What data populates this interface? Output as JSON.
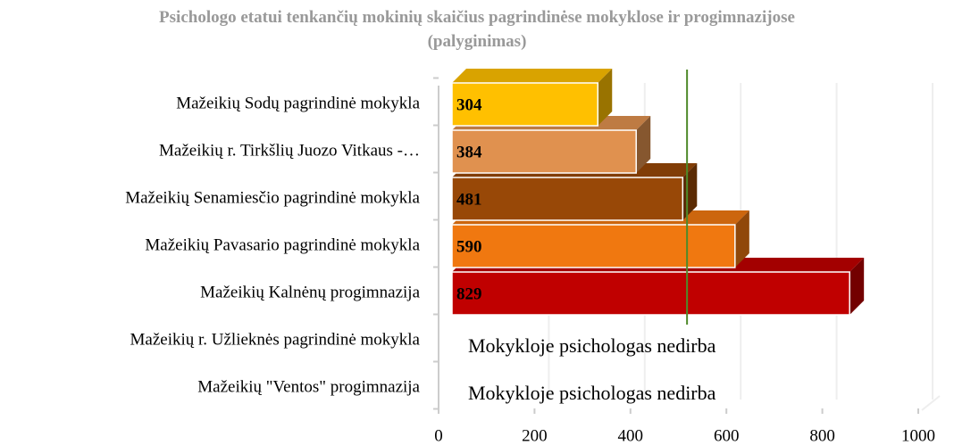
{
  "chart_data": {
    "type": "bar3d_horizontal",
    "title": "Psichologo etatui tenkančių mokinių skaičius pagrindinėse mokyklose ir progimnazijose (palyginimas)",
    "categories": [
      "Mažeikių Sodų pagrindinė mokykla",
      "Mažeikių r. Tirkšlių Juozo Vitkaus -…",
      "Mažeikių Senamiesčio pagrindinė mokykla",
      "Mažeikių Pavasario pagrindinė mokykla",
      "Mažeikių Kalnėnų progimnazija",
      "Mažeikių r. Užlieknės pagrindinė mokykla",
      "Mažeikių \"Ventos\" progimnazija"
    ],
    "values": [
      304,
      384,
      481,
      590,
      829,
      null,
      null
    ],
    "colors": [
      "#ffc000",
      "#e0914f",
      "#984807",
      "#f07810",
      "#c00000",
      null,
      null
    ],
    "annotations": [
      "Mokykloje psichologas nedirba",
      "Mokykloje psichologas nedirba"
    ],
    "reference_line": {
      "value": 490,
      "color": "#4f8a2a"
    },
    "xlim": [
      0,
      1000
    ],
    "xticks": [
      0,
      200,
      400,
      600,
      800,
      1000
    ],
    "grid": true
  }
}
